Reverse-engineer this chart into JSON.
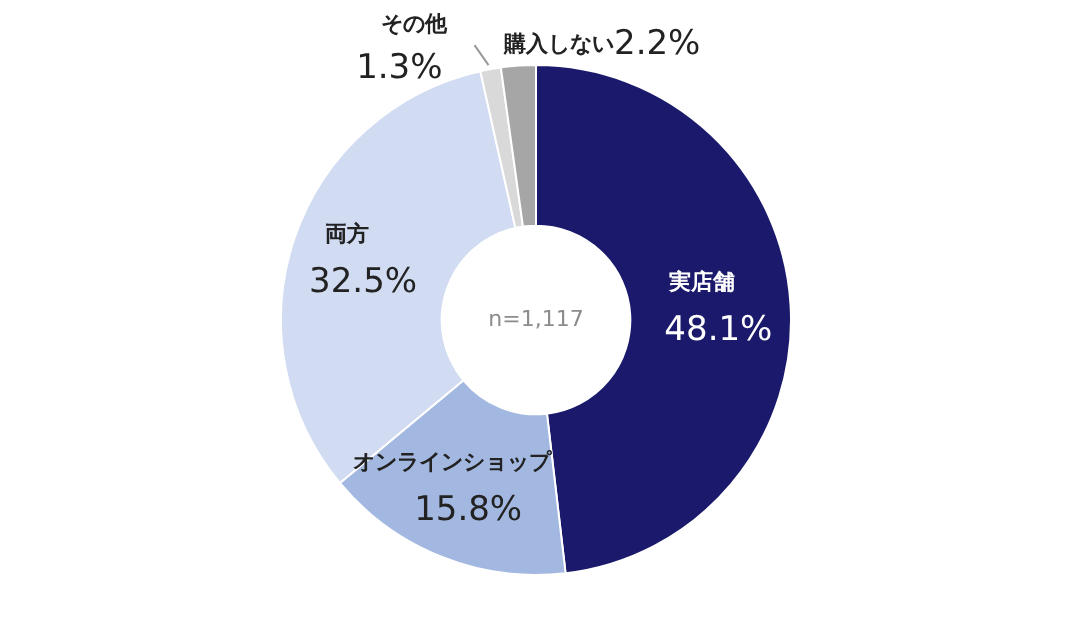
{
  "chart_data": {
    "type": "donut",
    "categories": [
      "実店舗",
      "オンラインショップ",
      "両方",
      "その他",
      "購入しない"
    ],
    "values": [
      48.1,
      15.8,
      32.5,
      1.3,
      2.2
    ],
    "value_labels": [
      "48.1%",
      "15.8%",
      "32.5%",
      "1.3%",
      "2.2%"
    ],
    "colors": [
      "#1a196b",
      "#a3b8e1",
      "#d1dbf2",
      "#d9d9d9",
      "#a6a6a6"
    ],
    "annotations": [
      "n=1,117"
    ],
    "legend": false
  }
}
